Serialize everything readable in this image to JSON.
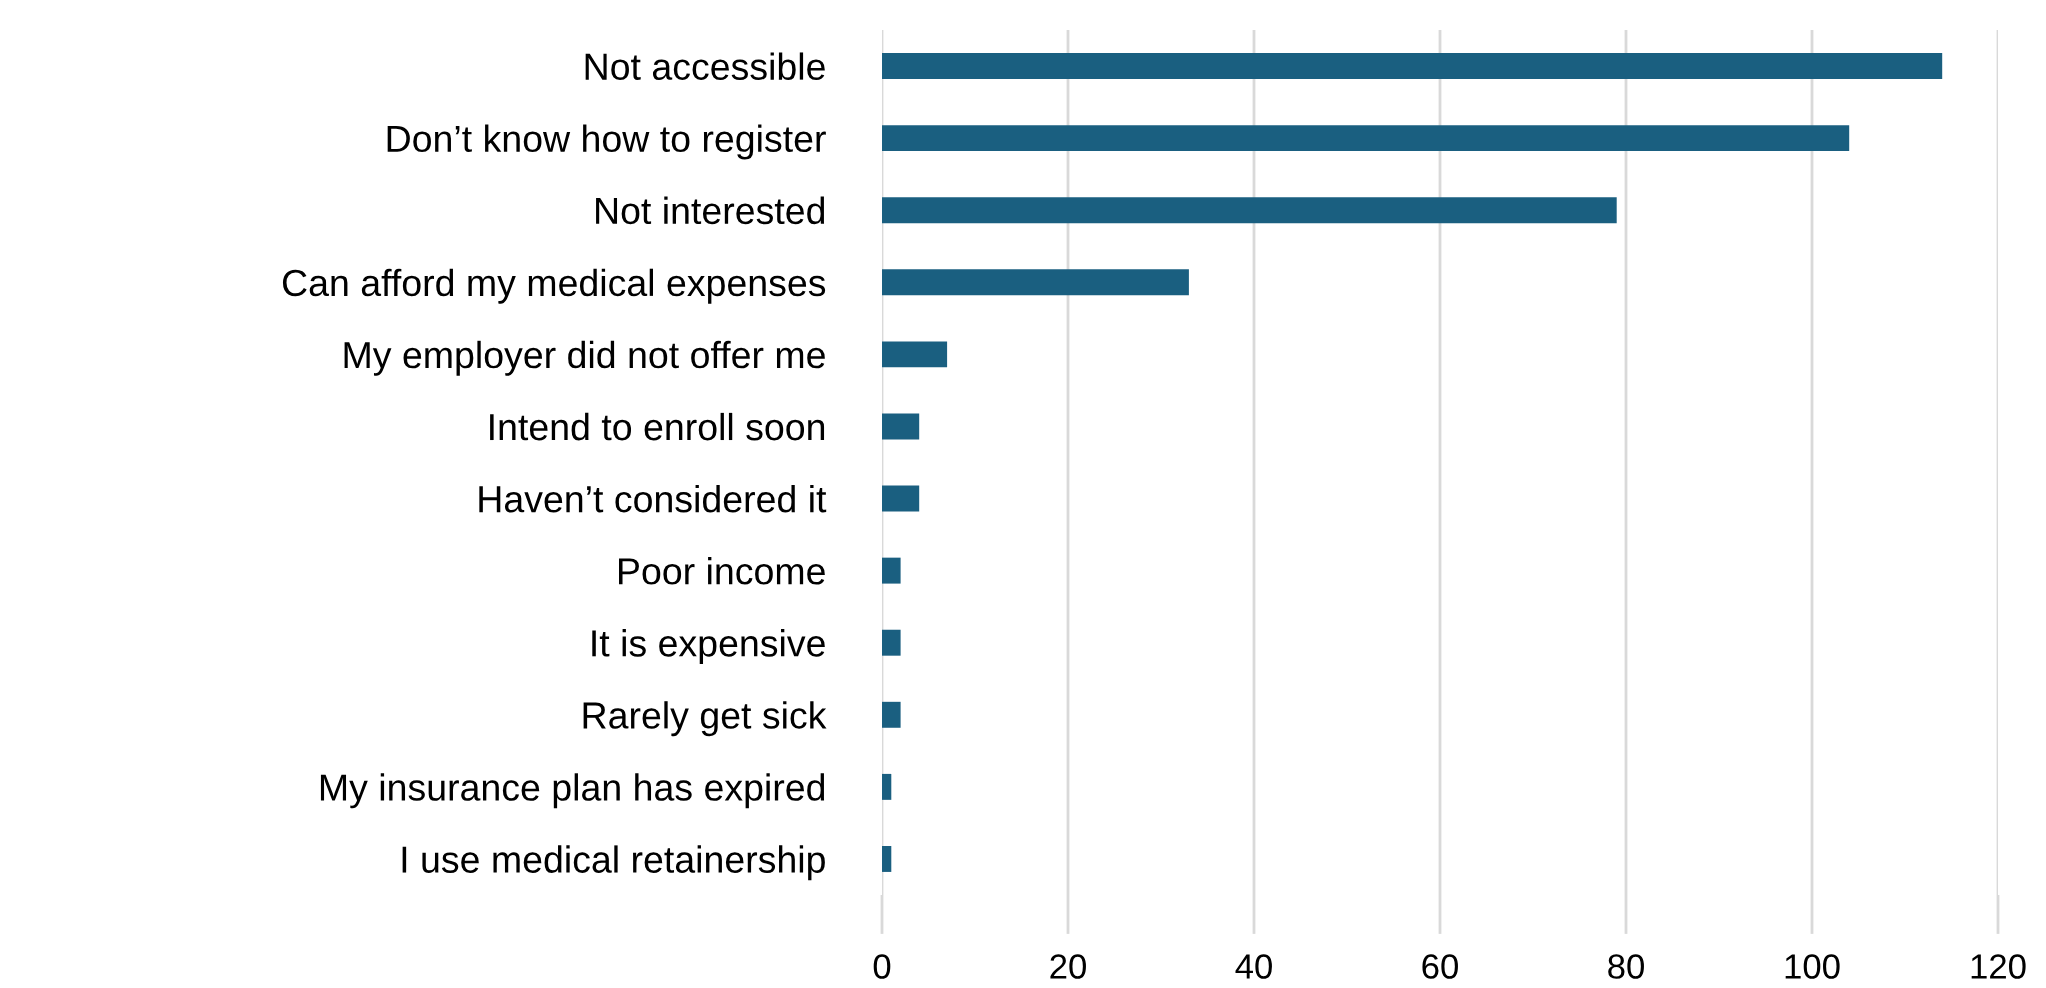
{
  "chart_data": {
    "type": "bar",
    "orientation": "horizontal",
    "categories": [
      "Not accessible",
      "Don’t know how to register",
      "Not interested",
      "Can afford my medical expenses",
      "My employer did not offer me",
      "Intend to enroll soon",
      "Haven’t considered it",
      "Poor income",
      "It is expensive",
      "Rarely get sick",
      "My insurance plan has expired",
      "I use medical retainership"
    ],
    "values": [
      114,
      104,
      79,
      33,
      7,
      4,
      4,
      2,
      2,
      2,
      1,
      1
    ],
    "color": "#1a5f80",
    "xlim": [
      0,
      120
    ],
    "xticks": [
      0,
      20,
      40,
      60,
      80,
      100,
      120
    ],
    "grid": "x",
    "legend": false
  }
}
